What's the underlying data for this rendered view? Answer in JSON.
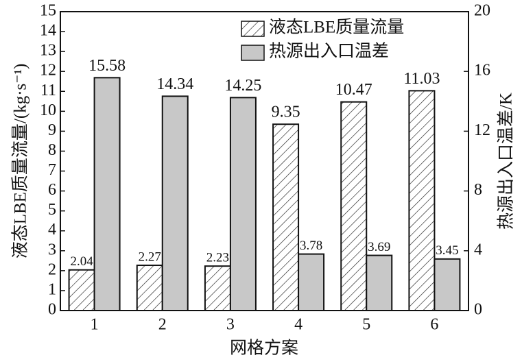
{
  "chart_data": {
    "type": "bar",
    "categories": [
      "1",
      "2",
      "3",
      "4",
      "5",
      "6"
    ],
    "x_label": "网格方案",
    "y_label": "液态LBE质量流量/(kg·s⁻¹)",
    "y2_label": "热源出入口温差/K",
    "series": [
      {
        "name": "液态LBE质量流量",
        "color": "#ffffff",
        "pattern": "hatch",
        "values": [
          2.04,
          2.27,
          2.23,
          9.35,
          10.47,
          11.03
        ]
      },
      {
        "name": "热源出入口温差",
        "color": "#c8c8c8",
        "axis": "y2",
        "values": [
          15.58,
          14.34,
          14.25,
          3.78,
          3.69,
          3.45
        ]
      }
    ],
    "ylim": [
      0,
      15
    ],
    "yticks": [
      0,
      1,
      2,
      3,
      4,
      5,
      6,
      7,
      8,
      9,
      10,
      11,
      12,
      13,
      14,
      15
    ],
    "y2lim": [
      0,
      20
    ],
    "y2ticks": [
      0,
      4,
      8,
      12,
      16,
      20
    ],
    "legend": "upper right"
  }
}
